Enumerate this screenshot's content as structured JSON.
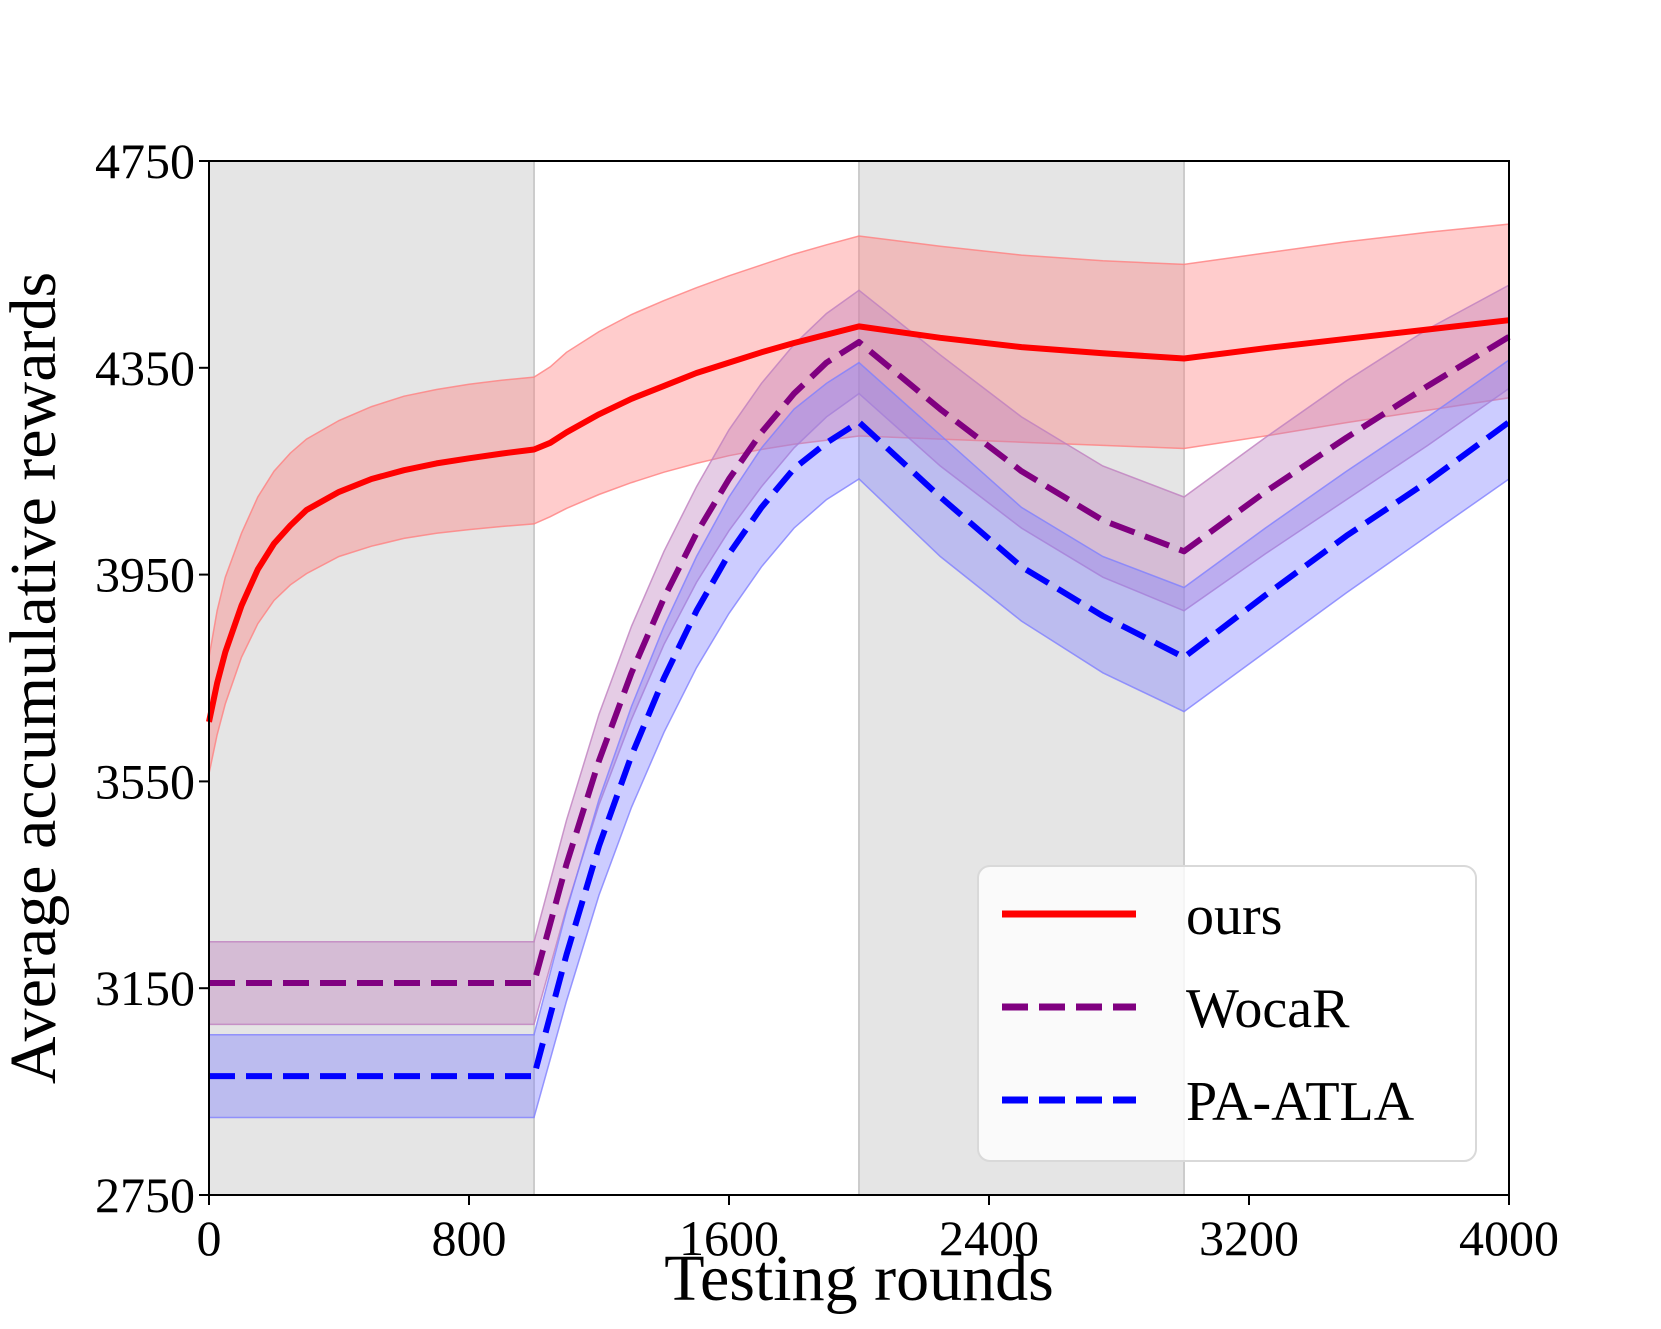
{
  "chart_data": {
    "type": "line",
    "title": "",
    "xlabel": "Testing rounds",
    "ylabel": "Average accumulative rewards",
    "xlim": [
      0,
      4000
    ],
    "ylim": [
      2750,
      4750
    ],
    "xticks": [
      "0",
      "800",
      "1600",
      "2400",
      "3200",
      "4000"
    ],
    "yticks": [
      "2750",
      "3150",
      "3550",
      "3950",
      "4350",
      "4750"
    ],
    "xtick_values": [
      0,
      800,
      1600,
      2400,
      3200,
      4000
    ],
    "ytick_values": [
      2750,
      3150,
      3550,
      3950,
      4350,
      4750
    ],
    "grid": false,
    "legend_position": "lower-right",
    "shaded_regions": [
      {
        "x_start": 0,
        "x_end": 1000,
        "color": "#e5e5e5"
      },
      {
        "x_start": 2000,
        "x_end": 3000,
        "color": "#e5e5e5"
      }
    ],
    "series": [
      {
        "name": "ours",
        "color": "#ff0000",
        "band_color": "#ff7f7f",
        "style": "solid",
        "x": [
          0,
          25,
          50,
          100,
          150,
          200,
          250,
          300,
          400,
          500,
          600,
          700,
          800,
          900,
          1000,
          1050,
          1100,
          1200,
          1300,
          1400,
          1500,
          1600,
          1700,
          1800,
          1900,
          2000,
          2250,
          2500,
          2750,
          3000,
          3250,
          3500,
          3750,
          4000
        ],
        "values": [
          3665,
          3740,
          3800,
          3890,
          3960,
          4010,
          4045,
          4075,
          4110,
          4135,
          4152,
          4165,
          4175,
          4184,
          4192,
          4205,
          4225,
          4260,
          4290,
          4315,
          4340,
          4360,
          4380,
          4398,
          4414,
          4430,
          4408,
          4390,
          4378,
          4368,
          4388,
          4406,
          4424,
          4442
        ],
        "lower": [
          3565,
          3640,
          3700,
          3790,
          3855,
          3900,
          3930,
          3952,
          3985,
          4005,
          4020,
          4030,
          4037,
          4043,
          4048,
          4062,
          4078,
          4105,
          4128,
          4148,
          4165,
          4180,
          4192,
          4202,
          4210,
          4218,
          4212,
          4206,
          4200,
          4194,
          4218,
          4244,
          4268,
          4292
        ],
        "upper": [
          3790,
          3880,
          3945,
          4030,
          4100,
          4150,
          4185,
          4212,
          4248,
          4275,
          4295,
          4308,
          4318,
          4326,
          4332,
          4352,
          4380,
          4420,
          4453,
          4480,
          4505,
          4528,
          4549,
          4570,
          4588,
          4605,
          4585,
          4568,
          4557,
          4550,
          4572,
          4594,
          4612,
          4628
        ]
      },
      {
        "name": "WocaR",
        "color": "#800080",
        "band_color": "#bf7fbf",
        "style": "dashed",
        "x": [
          0,
          200,
          400,
          600,
          800,
          1000,
          1100,
          1200,
          1300,
          1400,
          1500,
          1600,
          1700,
          1800,
          1900,
          2000,
          2250,
          2500,
          2750,
          3000,
          3250,
          3500,
          3750,
          4000
        ],
        "values": [
          3160,
          3160,
          3160,
          3160,
          3160,
          3160,
          3390,
          3590,
          3760,
          3905,
          4030,
          4135,
          4225,
          4300,
          4360,
          4400,
          4270,
          4150,
          4055,
          3995,
          4110,
          4215,
          4315,
          4410
        ],
        "lower": [
          3080,
          3080,
          3080,
          3080,
          3080,
          3080,
          3305,
          3505,
          3670,
          3815,
          3935,
          4035,
          4120,
          4195,
          4255,
          4300,
          4160,
          4040,
          3945,
          3880,
          3990,
          4095,
          4200,
          4310
        ],
        "upper": [
          3240,
          3240,
          3240,
          3240,
          3240,
          3240,
          3475,
          3680,
          3850,
          3995,
          4120,
          4230,
          4320,
          4395,
          4455,
          4500,
          4375,
          4255,
          4160,
          4100,
          4215,
          4325,
          4425,
          4510
        ]
      },
      {
        "name": "PA-ATLA",
        "color": "#0000ff",
        "band_color": "#7f7fff",
        "style": "dashed",
        "x": [
          0,
          200,
          400,
          600,
          800,
          1000,
          1100,
          1200,
          1300,
          1400,
          1500,
          1600,
          1700,
          1800,
          1900,
          2000,
          2250,
          2500,
          2750,
          3000,
          3250,
          3500,
          3750,
          4000
        ],
        "values": [
          2980,
          2980,
          2980,
          2980,
          2980,
          2980,
          3215,
          3425,
          3600,
          3750,
          3880,
          3990,
          4080,
          4155,
          4205,
          4245,
          4100,
          3965,
          3870,
          3790,
          3910,
          4025,
          4130,
          4245
        ],
        "lower": [
          2900,
          2900,
          2900,
          2900,
          2900,
          2900,
          3125,
          3330,
          3500,
          3645,
          3770,
          3875,
          3965,
          4040,
          4095,
          4135,
          3985,
          3860,
          3760,
          3685,
          3800,
          3915,
          4025,
          4135
        ],
        "upper": [
          3060,
          3060,
          3060,
          3060,
          3060,
          3060,
          3300,
          3515,
          3695,
          3850,
          3985,
          4100,
          4195,
          4270,
          4320,
          4360,
          4220,
          4080,
          3985,
          3925,
          4040,
          4150,
          4255,
          4365
        ]
      }
    ]
  }
}
